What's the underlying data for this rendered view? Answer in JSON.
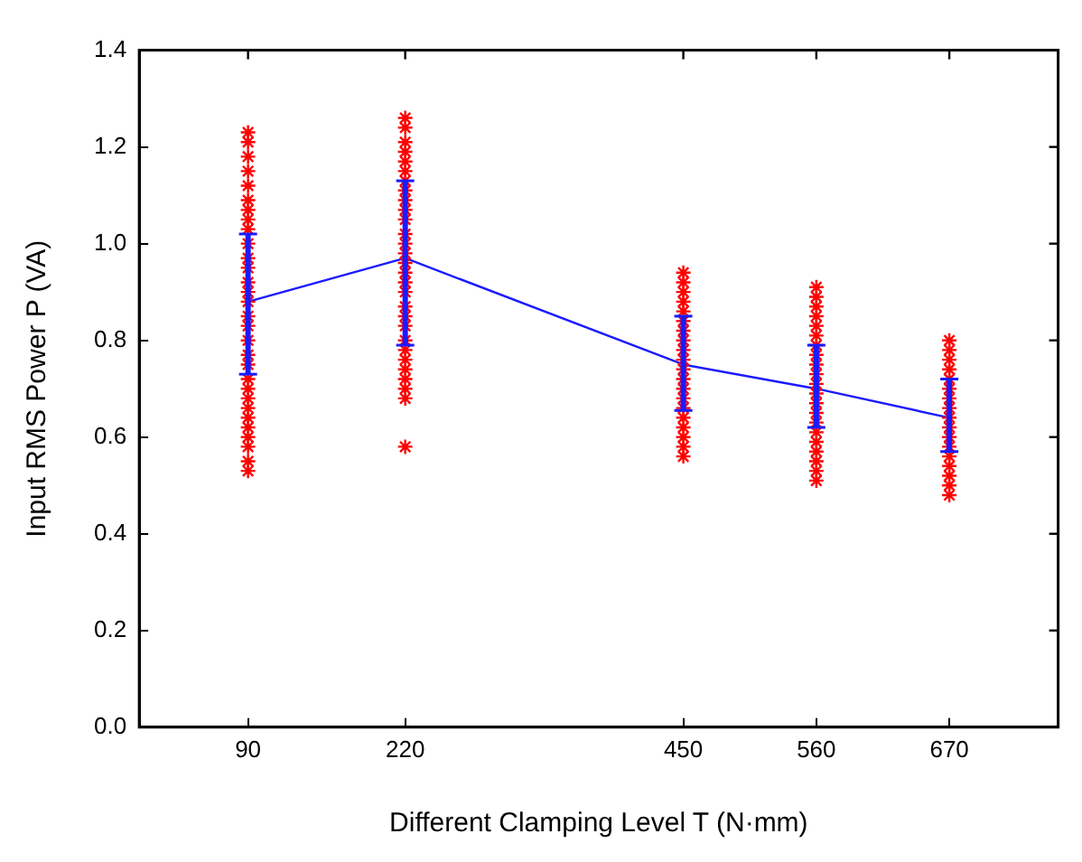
{
  "chart_data": {
    "type": "scatter",
    "xlabel": "Different Clamping Level T (N·mm)",
    "ylabel": "Input RMS Power P (VA)",
    "xlim": [
      0,
      760
    ],
    "xticks": [
      90,
      220,
      450,
      560,
      670
    ],
    "ylim": [
      0,
      1.4
    ],
    "yticks": [
      {
        "value": 0,
        "label": "0.0"
      },
      {
        "value": 0.2,
        "label": "0.2"
      },
      {
        "value": 0.4,
        "label": "0.4"
      },
      {
        "value": 0.6,
        "label": "0.6"
      },
      {
        "value": 0.8,
        "label": "0.8"
      },
      {
        "value": 1,
        "label": "1.0"
      },
      {
        "value": 1.2,
        "label": "1.2"
      },
      {
        "value": 1.4,
        "label": "1.4"
      }
    ],
    "grid": false,
    "legend": false,
    "series": [
      {
        "type": "scatter",
        "marker": "cross",
        "color": "#ff0000",
        "x": [
          90,
          90,
          90,
          90,
          90,
          90,
          90,
          90,
          90,
          90,
          90,
          90,
          90,
          90,
          90,
          90,
          90,
          90,
          90,
          90,
          90,
          90,
          90,
          90,
          90,
          90,
          90,
          90,
          90,
          90,
          220,
          220,
          220,
          220,
          220,
          220,
          220,
          220,
          220,
          220,
          220,
          220,
          220,
          220,
          220,
          220,
          220,
          220,
          220,
          220,
          220,
          220,
          220,
          220,
          220,
          220,
          220,
          220,
          220,
          450,
          450,
          450,
          450,
          450,
          450,
          450,
          450,
          450,
          450,
          450,
          450,
          450,
          450,
          450,
          450,
          450,
          450,
          450,
          450,
          560,
          560,
          560,
          560,
          560,
          560,
          560,
          560,
          560,
          560,
          560,
          560,
          560,
          560,
          560,
          560,
          560,
          560,
          560,
          560,
          560,
          670,
          670,
          670,
          670,
          670,
          670,
          670,
          670,
          670,
          670,
          670,
          670,
          670,
          670,
          670,
          670,
          670
        ],
        "values": [
          1.23,
          1.21,
          1.18,
          1.15,
          1.12,
          1.09,
          1.07,
          1.05,
          1.03,
          1.0,
          0.97,
          0.95,
          0.92,
          0.9,
          0.88,
          0.85,
          0.83,
          0.8,
          0.77,
          0.75,
          0.72,
          0.7,
          0.68,
          0.66,
          0.64,
          0.62,
          0.6,
          0.58,
          0.55,
          0.53,
          1.26,
          1.24,
          1.21,
          1.19,
          1.17,
          1.15,
          1.13,
          1.11,
          1.09,
          1.07,
          1.05,
          1.02,
          1.0,
          0.98,
          0.96,
          0.94,
          0.92,
          0.9,
          0.87,
          0.85,
          0.83,
          0.8,
          0.78,
          0.76,
          0.74,
          0.72,
          0.7,
          0.68,
          0.58,
          0.94,
          0.92,
          0.9,
          0.88,
          0.86,
          0.84,
          0.82,
          0.8,
          0.78,
          0.76,
          0.74,
          0.72,
          0.7,
          0.68,
          0.66,
          0.64,
          0.62,
          0.6,
          0.58,
          0.56,
          0.91,
          0.89,
          0.87,
          0.85,
          0.83,
          0.81,
          0.79,
          0.77,
          0.75,
          0.73,
          0.71,
          0.69,
          0.67,
          0.65,
          0.63,
          0.61,
          0.59,
          0.57,
          0.55,
          0.53,
          0.51,
          0.8,
          0.78,
          0.76,
          0.74,
          0.72,
          0.7,
          0.68,
          0.66,
          0.64,
          0.62,
          0.6,
          0.58,
          0.56,
          0.54,
          0.52,
          0.5,
          0.48
        ]
      },
      {
        "type": "line",
        "marker": "none",
        "line_style": "solid",
        "color": "#1a1aff",
        "x": [
          90,
          220,
          450,
          560,
          670
        ],
        "values": [
          0.88,
          0.97,
          0.75,
          0.7,
          0.64
        ],
        "errors": [
          [
            0.73,
            1.02
          ],
          [
            0.79,
            1.13
          ],
          [
            0.655,
            0.85
          ],
          [
            0.62,
            0.79
          ],
          [
            0.57,
            0.72
          ]
        ]
      }
    ]
  }
}
